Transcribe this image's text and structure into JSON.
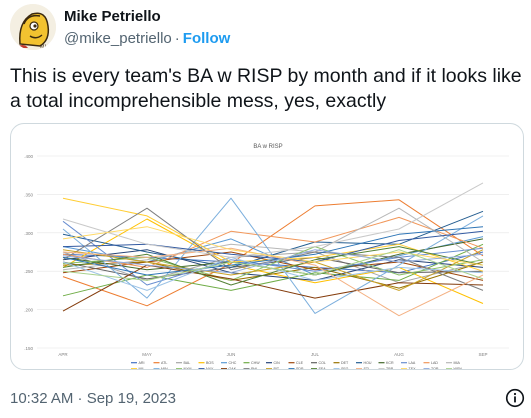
{
  "tweet": {
    "author_name": "Mike Petriello",
    "handle": "@mike_petriello",
    "separator": "·",
    "follow_label": "Follow",
    "text": "This is every team's BA w RISP by month and if it looks like a total incomprehensible mess, yes, exactly",
    "timestamp": "10:32 AM · Sep 19, 2023",
    "avatar_icon": "cartoon-avatar",
    "info_icon": "info-circle-icon",
    "colors": {
      "link": "#1d9bf0",
      "secondary_text": "#536471",
      "border": "#cfd9de"
    }
  },
  "chart_data": {
    "type": "line",
    "title": "BA w RISP",
    "xlabel": "",
    "ylabel": "",
    "x": [
      "APR",
      "MAY",
      "JUN",
      "JUL",
      "AUG",
      "SEP"
    ],
    "yticks": [
      ".150",
      ".200",
      ".250",
      ".300",
      ".350",
      ".400"
    ],
    "ylim": [
      0.15,
      0.4
    ],
    "grid": true,
    "legend_position": "bottom",
    "series": [
      {
        "name": "ARI",
        "color": "#4472c4",
        "values": [
          0.272,
          0.268,
          0.262,
          0.255,
          0.248,
          0.275
        ]
      },
      {
        "name": "ATL",
        "color": "#ed7d31",
        "values": [
          0.243,
          0.205,
          0.26,
          0.335,
          0.343,
          0.27
        ]
      },
      {
        "name": "BAL",
        "color": "#a5a5a5",
        "values": [
          0.275,
          0.238,
          0.268,
          0.275,
          0.235,
          0.262
        ]
      },
      {
        "name": "BOS",
        "color": "#ffc000",
        "values": [
          0.255,
          0.318,
          0.258,
          0.235,
          0.255,
          0.208
        ]
      },
      {
        "name": "CHC",
        "color": "#5b9bd5",
        "values": [
          0.282,
          0.262,
          0.292,
          0.245,
          0.27,
          0.295
        ]
      },
      {
        "name": "CHW",
        "color": "#70ad47",
        "values": [
          0.218,
          0.245,
          0.225,
          0.248,
          0.238,
          0.285
        ]
      },
      {
        "name": "CIN",
        "color": "#264478",
        "values": [
          0.265,
          0.278,
          0.248,
          0.238,
          0.265,
          0.255
        ]
      },
      {
        "name": "CLE",
        "color": "#9e480e",
        "values": [
          0.248,
          0.262,
          0.275,
          0.252,
          0.262,
          0.238
        ]
      },
      {
        "name": "COL",
        "color": "#636363",
        "values": [
          0.262,
          0.24,
          0.255,
          0.268,
          0.248,
          0.25
        ]
      },
      {
        "name": "DET",
        "color": "#997300",
        "values": [
          0.258,
          0.262,
          0.238,
          0.255,
          0.228,
          0.262
        ]
      },
      {
        "name": "HOU",
        "color": "#255e91",
        "values": [
          0.298,
          0.275,
          0.255,
          0.288,
          0.285,
          0.328
        ]
      },
      {
        "name": "KCR",
        "color": "#43682b",
        "values": [
          0.268,
          0.252,
          0.262,
          0.245,
          0.272,
          0.292
        ]
      },
      {
        "name": "LAA",
        "color": "#698ed0",
        "values": [
          0.315,
          0.232,
          0.265,
          0.25,
          0.268,
          0.28
        ]
      },
      {
        "name": "LAD",
        "color": "#f1975a",
        "values": [
          0.272,
          0.255,
          0.302,
          0.288,
          0.32,
          0.28
        ]
      },
      {
        "name": "MIA",
        "color": "#b7b7b7",
        "values": [
          0.252,
          0.265,
          0.285,
          0.275,
          0.332,
          0.262
        ]
      },
      {
        "name": "MIL",
        "color": "#ffcd33",
        "values": [
          0.345,
          0.322,
          0.262,
          0.268,
          0.285,
          0.25
        ]
      },
      {
        "name": "MIN",
        "color": "#7cafdd",
        "values": [
          0.305,
          0.215,
          0.345,
          0.195,
          0.258,
          0.322
        ]
      },
      {
        "name": "NYM",
        "color": "#8cc168",
        "values": [
          0.26,
          0.268,
          0.238,
          0.282,
          0.245,
          0.265
        ]
      },
      {
        "name": "NYY",
        "color": "#335aa1",
        "values": [
          0.282,
          0.285,
          0.272,
          0.262,
          0.29,
          0.302
        ]
      },
      {
        "name": "OAK",
        "color": "#843c0c",
        "values": [
          0.198,
          0.258,
          0.24,
          0.215,
          0.235,
          0.232
        ]
      },
      {
        "name": "PHI",
        "color": "#7f7f7f",
        "values": [
          0.265,
          0.332,
          0.252,
          0.275,
          0.268,
          0.225
        ]
      },
      {
        "name": "PIT",
        "color": "#c9a227",
        "values": [
          0.278,
          0.262,
          0.245,
          0.262,
          0.225,
          0.278
        ]
      },
      {
        "name": "SDP",
        "color": "#2e75b6",
        "values": [
          0.268,
          0.245,
          0.258,
          0.272,
          0.298,
          0.308
        ]
      },
      {
        "name": "SEA",
        "color": "#548235",
        "values": [
          0.255,
          0.272,
          0.232,
          0.265,
          0.282,
          0.258
        ]
      },
      {
        "name": "SFG",
        "color": "#9dc3e6",
        "values": [
          0.262,
          0.225,
          0.268,
          0.238,
          0.255,
          0.248
        ]
      },
      {
        "name": "STL",
        "color": "#f4b183",
        "values": [
          0.275,
          0.268,
          0.28,
          0.258,
          0.192,
          0.245
        ]
      },
      {
        "name": "TBR",
        "color": "#c9c9c9",
        "values": [
          0.318,
          0.285,
          0.268,
          0.282,
          0.305,
          0.365
        ]
      },
      {
        "name": "TEX",
        "color": "#ffd966",
        "values": [
          0.292,
          0.308,
          0.278,
          0.262,
          0.275,
          0.258
        ]
      },
      {
        "name": "TOR",
        "color": "#8faadc",
        "values": [
          0.27,
          0.258,
          0.248,
          0.278,
          0.262,
          0.272
        ]
      },
      {
        "name": "WSN",
        "color": "#a9d18e",
        "values": [
          0.25,
          0.238,
          0.262,
          0.245,
          0.278,
          0.24
        ]
      }
    ]
  }
}
